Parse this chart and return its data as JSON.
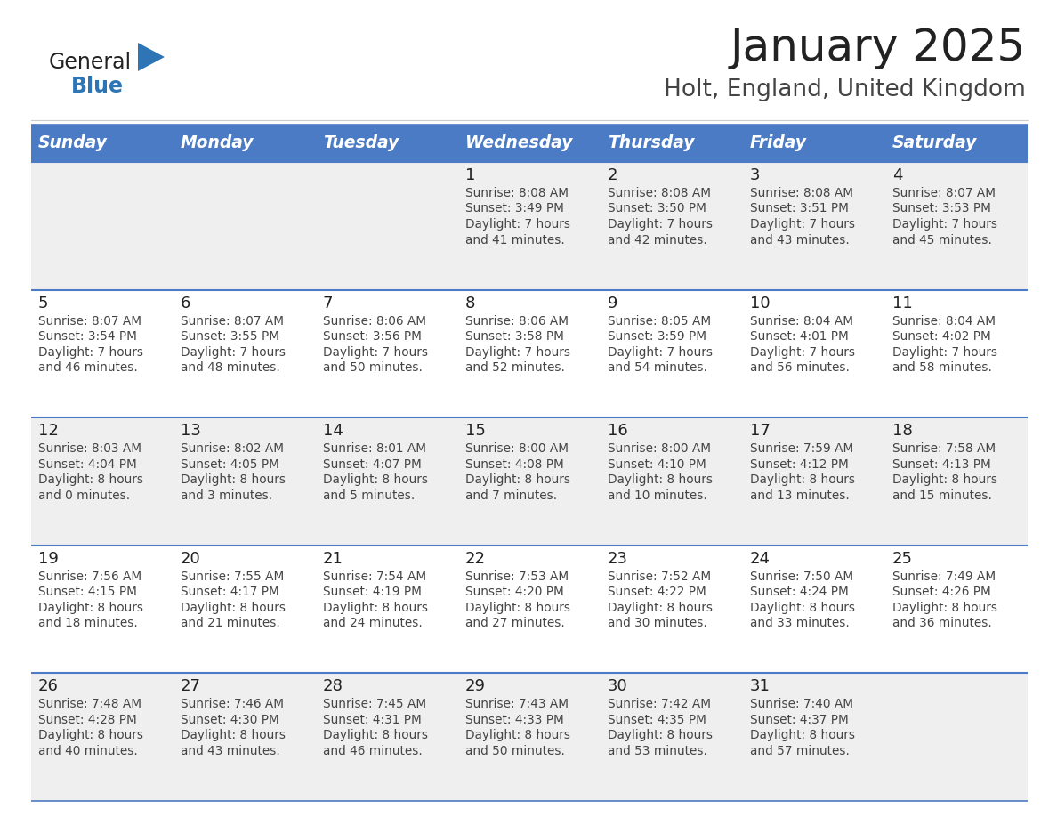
{
  "title": "January 2025",
  "subtitle": "Holt, England, United Kingdom",
  "header_color": "#4A7BC4",
  "header_text_color": "#FFFFFF",
  "day_names": [
    "Sunday",
    "Monday",
    "Tuesday",
    "Wednesday",
    "Thursday",
    "Friday",
    "Saturday"
  ],
  "background_color": "#FFFFFF",
  "cell_bg_even": "#EFEFEF",
  "cell_bg_odd": "#FFFFFF",
  "divider_color": "#4A7BC4",
  "day_number_color": "#222222",
  "cell_text_color": "#444444",
  "logo_general_color": "#222222",
  "logo_blue_color": "#2E75B6",
  "logo_triangle_color": "#2E75B6",
  "title_color": "#222222",
  "subtitle_color": "#444444",
  "calendar": [
    [
      {
        "day": "",
        "info": ""
      },
      {
        "day": "",
        "info": ""
      },
      {
        "day": "",
        "info": ""
      },
      {
        "day": "1",
        "info": "Sunrise: 8:08 AM\nSunset: 3:49 PM\nDaylight: 7 hours\nand 41 minutes."
      },
      {
        "day": "2",
        "info": "Sunrise: 8:08 AM\nSunset: 3:50 PM\nDaylight: 7 hours\nand 42 minutes."
      },
      {
        "day": "3",
        "info": "Sunrise: 8:08 AM\nSunset: 3:51 PM\nDaylight: 7 hours\nand 43 minutes."
      },
      {
        "day": "4",
        "info": "Sunrise: 8:07 AM\nSunset: 3:53 PM\nDaylight: 7 hours\nand 45 minutes."
      }
    ],
    [
      {
        "day": "5",
        "info": "Sunrise: 8:07 AM\nSunset: 3:54 PM\nDaylight: 7 hours\nand 46 minutes."
      },
      {
        "day": "6",
        "info": "Sunrise: 8:07 AM\nSunset: 3:55 PM\nDaylight: 7 hours\nand 48 minutes."
      },
      {
        "day": "7",
        "info": "Sunrise: 8:06 AM\nSunset: 3:56 PM\nDaylight: 7 hours\nand 50 minutes."
      },
      {
        "day": "8",
        "info": "Sunrise: 8:06 AM\nSunset: 3:58 PM\nDaylight: 7 hours\nand 52 minutes."
      },
      {
        "day": "9",
        "info": "Sunrise: 8:05 AM\nSunset: 3:59 PM\nDaylight: 7 hours\nand 54 minutes."
      },
      {
        "day": "10",
        "info": "Sunrise: 8:04 AM\nSunset: 4:01 PM\nDaylight: 7 hours\nand 56 minutes."
      },
      {
        "day": "11",
        "info": "Sunrise: 8:04 AM\nSunset: 4:02 PM\nDaylight: 7 hours\nand 58 minutes."
      }
    ],
    [
      {
        "day": "12",
        "info": "Sunrise: 8:03 AM\nSunset: 4:04 PM\nDaylight: 8 hours\nand 0 minutes."
      },
      {
        "day": "13",
        "info": "Sunrise: 8:02 AM\nSunset: 4:05 PM\nDaylight: 8 hours\nand 3 minutes."
      },
      {
        "day": "14",
        "info": "Sunrise: 8:01 AM\nSunset: 4:07 PM\nDaylight: 8 hours\nand 5 minutes."
      },
      {
        "day": "15",
        "info": "Sunrise: 8:00 AM\nSunset: 4:08 PM\nDaylight: 8 hours\nand 7 minutes."
      },
      {
        "day": "16",
        "info": "Sunrise: 8:00 AM\nSunset: 4:10 PM\nDaylight: 8 hours\nand 10 minutes."
      },
      {
        "day": "17",
        "info": "Sunrise: 7:59 AM\nSunset: 4:12 PM\nDaylight: 8 hours\nand 13 minutes."
      },
      {
        "day": "18",
        "info": "Sunrise: 7:58 AM\nSunset: 4:13 PM\nDaylight: 8 hours\nand 15 minutes."
      }
    ],
    [
      {
        "day": "19",
        "info": "Sunrise: 7:56 AM\nSunset: 4:15 PM\nDaylight: 8 hours\nand 18 minutes."
      },
      {
        "day": "20",
        "info": "Sunrise: 7:55 AM\nSunset: 4:17 PM\nDaylight: 8 hours\nand 21 minutes."
      },
      {
        "day": "21",
        "info": "Sunrise: 7:54 AM\nSunset: 4:19 PM\nDaylight: 8 hours\nand 24 minutes."
      },
      {
        "day": "22",
        "info": "Sunrise: 7:53 AM\nSunset: 4:20 PM\nDaylight: 8 hours\nand 27 minutes."
      },
      {
        "day": "23",
        "info": "Sunrise: 7:52 AM\nSunset: 4:22 PM\nDaylight: 8 hours\nand 30 minutes."
      },
      {
        "day": "24",
        "info": "Sunrise: 7:50 AM\nSunset: 4:24 PM\nDaylight: 8 hours\nand 33 minutes."
      },
      {
        "day": "25",
        "info": "Sunrise: 7:49 AM\nSunset: 4:26 PM\nDaylight: 8 hours\nand 36 minutes."
      }
    ],
    [
      {
        "day": "26",
        "info": "Sunrise: 7:48 AM\nSunset: 4:28 PM\nDaylight: 8 hours\nand 40 minutes."
      },
      {
        "day": "27",
        "info": "Sunrise: 7:46 AM\nSunset: 4:30 PM\nDaylight: 8 hours\nand 43 minutes."
      },
      {
        "day": "28",
        "info": "Sunrise: 7:45 AM\nSunset: 4:31 PM\nDaylight: 8 hours\nand 46 minutes."
      },
      {
        "day": "29",
        "info": "Sunrise: 7:43 AM\nSunset: 4:33 PM\nDaylight: 8 hours\nand 50 minutes."
      },
      {
        "day": "30",
        "info": "Sunrise: 7:42 AM\nSunset: 4:35 PM\nDaylight: 8 hours\nand 53 minutes."
      },
      {
        "day": "31",
        "info": "Sunrise: 7:40 AM\nSunset: 4:37 PM\nDaylight: 8 hours\nand 57 minutes."
      },
      {
        "day": "",
        "info": ""
      }
    ]
  ]
}
